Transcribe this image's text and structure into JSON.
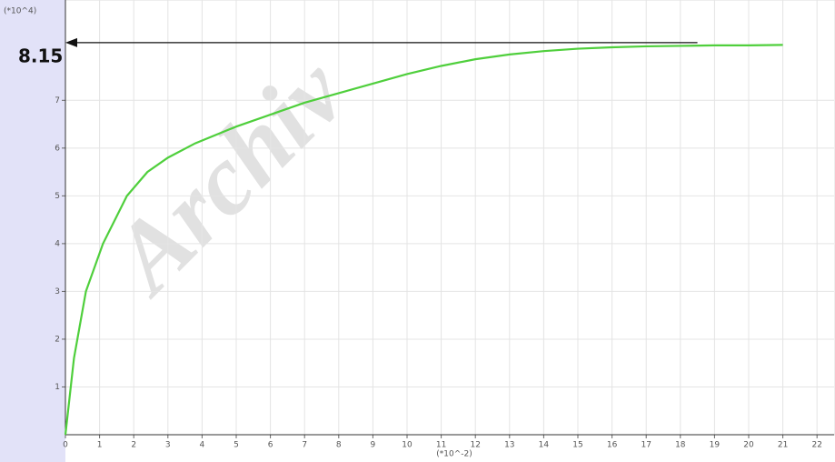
{
  "chart_data": {
    "type": "line",
    "y_unit_label": "(*10^4)",
    "x_unit_label": "(*10^-2)",
    "watermark": "Archiv",
    "x": [
      0,
      0.25,
      0.6,
      1.1,
      1.8,
      2.4,
      3,
      3.8,
      5,
      6,
      7,
      8,
      9,
      10,
      11,
      12,
      13,
      14,
      15,
      16,
      17,
      18,
      19,
      20,
      21
    ],
    "series": [
      {
        "color": "#4fcf3c",
        "values": [
          0,
          1.6,
          3,
          4,
          5,
          5.5,
          5.8,
          6.1,
          6.45,
          6.7,
          6.95,
          7.15,
          7.35,
          7.55,
          7.72,
          7.86,
          7.96,
          8.03,
          8.08,
          8.11,
          8.13,
          8.14,
          8.15,
          8.15,
          8.16
        ]
      }
    ],
    "xlim": [
      0,
      22.5
    ],
    "ylim": [
      0,
      9.1
    ],
    "xticks": [
      0,
      1,
      2,
      3,
      4,
      5,
      6,
      7,
      8,
      9,
      10,
      11,
      12,
      13,
      14,
      15,
      16,
      17,
      18,
      19,
      20,
      21,
      22
    ],
    "yticks": [
      1,
      2,
      3,
      4,
      5,
      6,
      7
    ],
    "grid": true,
    "annotation": {
      "label": "8.15",
      "x": [
        0,
        18.5
      ],
      "y": 8.15
    }
  }
}
